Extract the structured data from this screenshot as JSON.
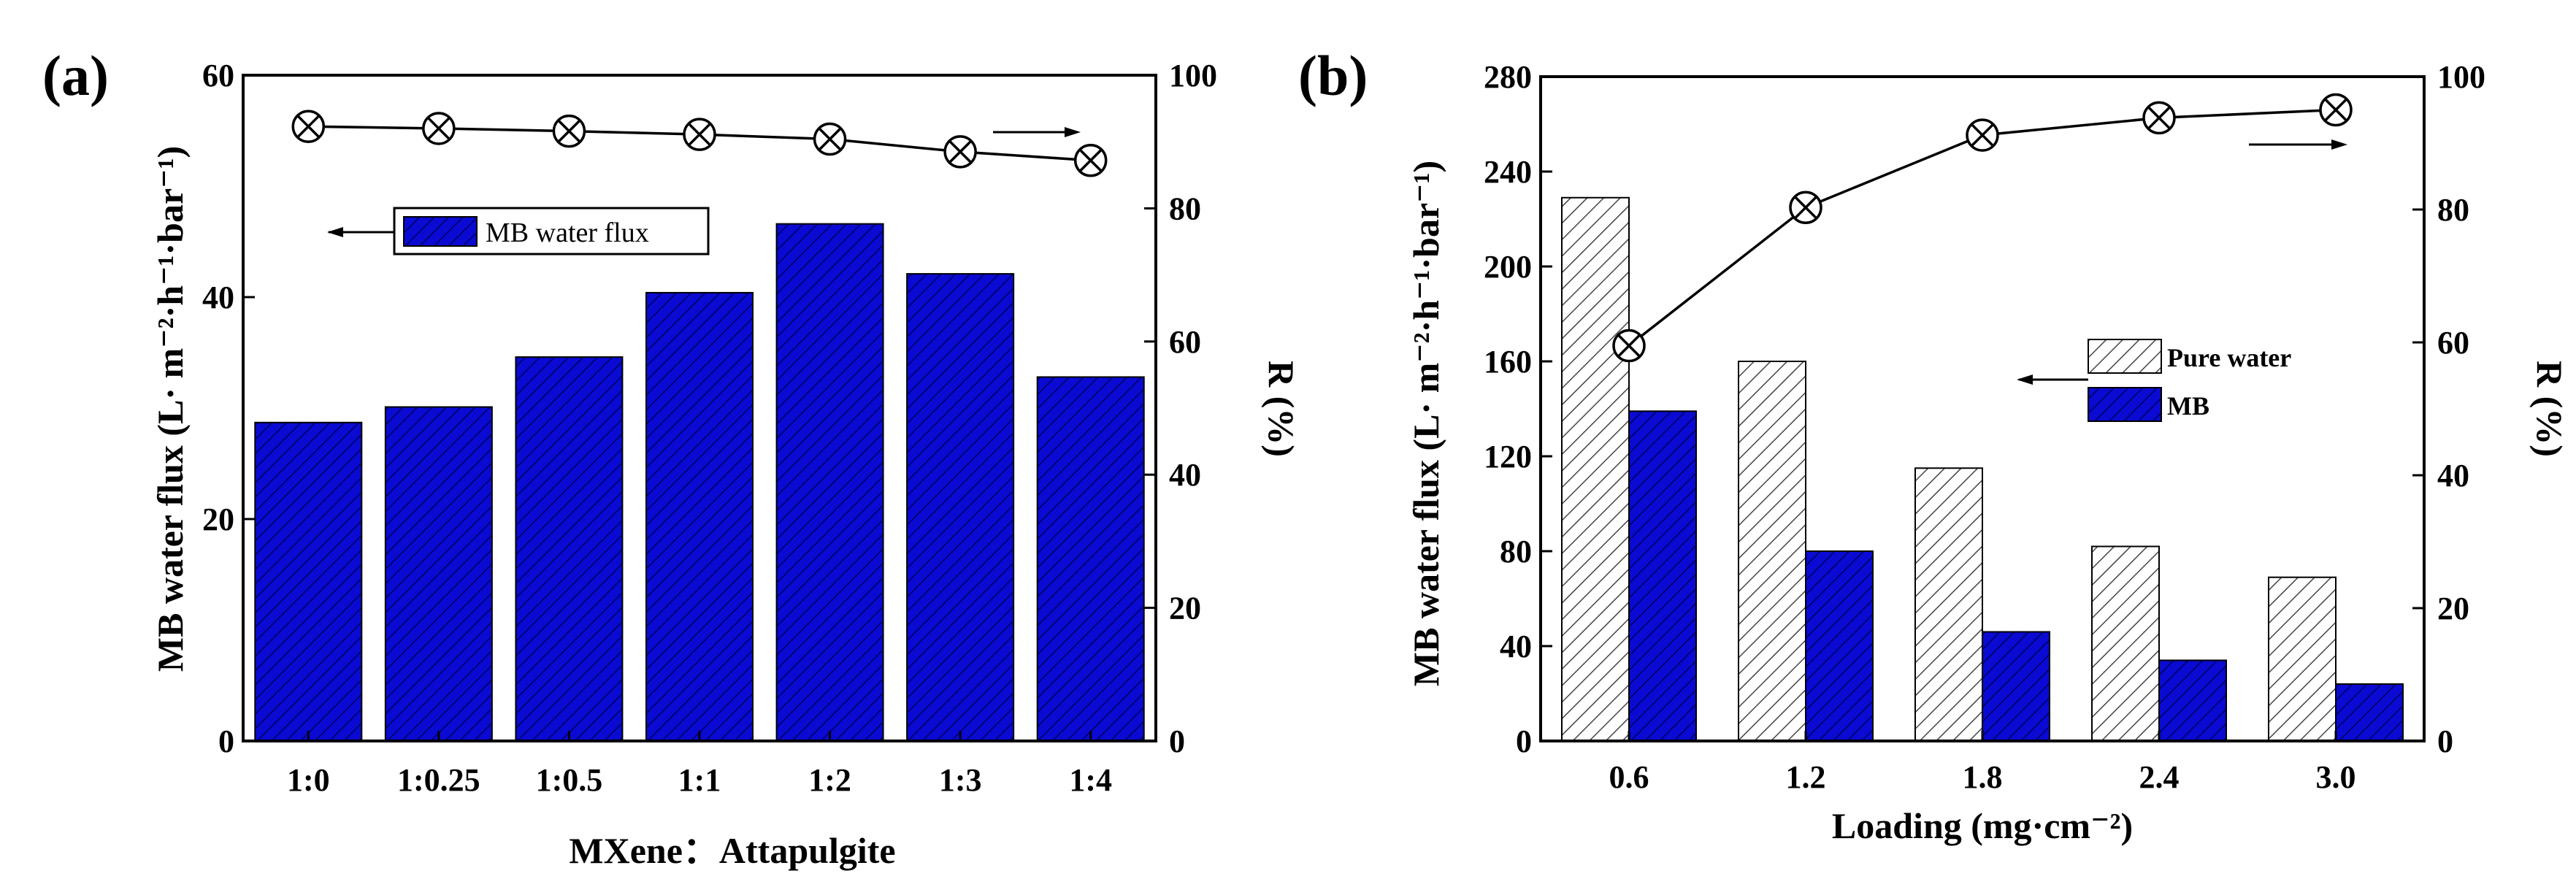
{
  "colors": {
    "bar_fill": "#0A0AD2",
    "bar_hatch": "#000060",
    "pure_fill": "#ffffff",
    "pure_hatch": "#444444",
    "axis": "#000000"
  },
  "chart_data": [
    {
      "type": "bar",
      "panel_label": "(a)",
      "categories": [
        "1:0",
        "1:0.25",
        "1:0.5",
        "1:1",
        "1:2",
        "1:3",
        "1:4"
      ],
      "series": [
        {
          "name": "MB water flux",
          "axis": "left",
          "values": [
            28.7,
            30.1,
            34.6,
            40.4,
            46.6,
            42.1,
            32.8
          ]
        }
      ],
      "line_series": [
        {
          "name": "R",
          "axis": "right",
          "marker": "circle-x",
          "values": [
            92.3,
            92.0,
            91.6,
            91.1,
            90.4,
            88.5,
            87.2
          ]
        }
      ],
      "xlabel": "MXene：Attapulgite",
      "ylabel": "MB water flux (L· m⁻²·h⁻¹·bar⁻¹)",
      "ylabel_right": "R (%)",
      "ylim": [
        0,
        60
      ],
      "yticks": [
        "0",
        "20",
        "40",
        "60"
      ],
      "ylim_right": [
        0,
        100
      ],
      "yticks_right": [
        "0",
        "20",
        "40",
        "60",
        "80",
        "100"
      ],
      "legend": [
        "MB water flux"
      ],
      "legend_position": "upper-left"
    },
    {
      "type": "bar",
      "panel_label": "(b)",
      "categories": [
        "0.6",
        "1.2",
        "1.8",
        "2.4",
        "3.0"
      ],
      "series": [
        {
          "name": "Pure water",
          "axis": "left",
          "values": [
            229,
            160,
            115,
            82,
            69
          ]
        },
        {
          "name": "MB",
          "axis": "left",
          "values": [
            139,
            80,
            46,
            34,
            24
          ]
        }
      ],
      "line_series": [
        {
          "name": "R",
          "axis": "right",
          "marker": "circle-x",
          "values": [
            59.5,
            80.3,
            91.2,
            93.8,
            95.0
          ]
        }
      ],
      "xlabel": "Loading (mg·cm⁻²)",
      "ylabel": "MB water flux (L· m⁻²·h⁻¹·bar⁻¹)",
      "ylabel_right": "R (%)",
      "ylim": [
        0,
        280
      ],
      "yticks": [
        "0",
        "40",
        "80",
        "120",
        "160",
        "200",
        "240",
        "280"
      ],
      "ylim_right": [
        0,
        100
      ],
      "yticks_right": [
        "0",
        "20",
        "40",
        "60",
        "80",
        "100"
      ],
      "legend": [
        "Pure water",
        "MB"
      ],
      "legend_position": "center-right"
    }
  ]
}
